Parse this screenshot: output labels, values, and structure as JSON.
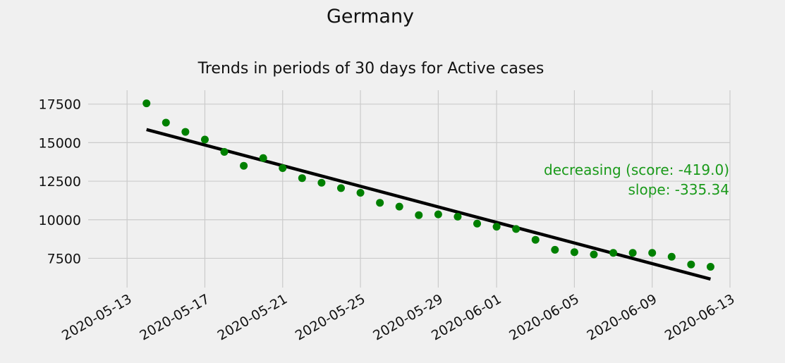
{
  "figure": {
    "title": "Germany"
  },
  "chart_data": {
    "type": "scatter",
    "title": "Trends in periods of 30 days for Active cases",
    "xlabel": "",
    "ylabel": "",
    "x_axis_type": "date",
    "xlim": [
      "2020-05-11",
      "2020-06-13"
    ],
    "ylim": [
      5600,
      18400
    ],
    "grid": true,
    "x_ticks": [
      "2020-05-13",
      "2020-05-17",
      "2020-05-21",
      "2020-05-25",
      "2020-05-29",
      "2020-06-01",
      "2020-06-05",
      "2020-06-09",
      "2020-06-13"
    ],
    "y_ticks": [
      7500,
      10000,
      12500,
      15000,
      17500
    ],
    "points_series": {
      "color": "#008000",
      "x": [
        "2020-05-14",
        "2020-05-15",
        "2020-05-16",
        "2020-05-17",
        "2020-05-18",
        "2020-05-19",
        "2020-05-20",
        "2020-05-21",
        "2020-05-22",
        "2020-05-23",
        "2020-05-24",
        "2020-05-25",
        "2020-05-26",
        "2020-05-27",
        "2020-05-28",
        "2020-05-29",
        "2020-05-30",
        "2020-05-31",
        "2020-06-01",
        "2020-06-02",
        "2020-06-03",
        "2020-06-04",
        "2020-06-05",
        "2020-06-06",
        "2020-06-07",
        "2020-06-08",
        "2020-06-09",
        "2020-06-10",
        "2020-06-11",
        "2020-06-12"
      ],
      "y": [
        17550,
        16300,
        15700,
        15200,
        14400,
        13500,
        14000,
        13350,
        12700,
        12400,
        12050,
        11750,
        11100,
        10850,
        10300,
        10350,
        10200,
        9750,
        9550,
        9400,
        8700,
        8050,
        7900,
        7750,
        7850,
        7850,
        7850,
        7600,
        7100,
        6950
      ]
    },
    "trend_line": {
      "color": "#000000",
      "x": [
        "2020-05-14",
        "2020-06-12"
      ],
      "y": [
        15850,
        6150
      ]
    },
    "annotation": {
      "color": "#1a9a1a",
      "line1": "decreasing (score: -419.0)",
      "line2": "slope: -335.34"
    }
  }
}
